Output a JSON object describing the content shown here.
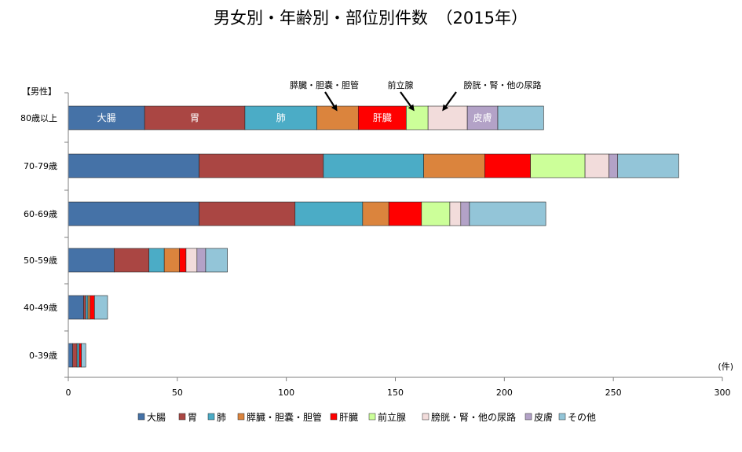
{
  "chart_data": {
    "type": "bar",
    "orientation": "horizontal",
    "stacked": true,
    "title": "男女別・年齢別・部位別件数　（2015年）",
    "group_label": "【男性】",
    "unit_label": "(件)",
    "xlim": [
      0,
      300
    ],
    "x_ticks": [
      0,
      50,
      100,
      150,
      200,
      250,
      300
    ],
    "categories": [
      "80歳以上",
      "70-79歳",
      "60-69歳",
      "50-59歳",
      "40-49歳",
      "0-39歳"
    ],
    "series": [
      {
        "name": "大腸",
        "color": "#4572A7",
        "values": [
          35,
          60,
          60,
          21,
          7,
          2
        ]
      },
      {
        "name": "胃",
        "color": "#AA4643",
        "values": [
          46,
          57,
          44,
          16,
          1,
          2
        ]
      },
      {
        "name": "肺",
        "color": "#4BACC6",
        "values": [
          33,
          46,
          31,
          7,
          1,
          1
        ]
      },
      {
        "name": "膵臓・胆嚢・胆管",
        "color": "#DB843D",
        "values": [
          19,
          28,
          12,
          7,
          1,
          0
        ]
      },
      {
        "name": "肝臓",
        "color": "#FF0000",
        "values": [
          22,
          21,
          15,
          3,
          2,
          1
        ]
      },
      {
        "name": "前立腺",
        "color": "#CCFF99",
        "values": [
          10,
          25,
          13,
          0,
          0,
          0
        ]
      },
      {
        "name": "膀胱・腎・他の尿路",
        "color": "#F2DCDB",
        "values": [
          18,
          11,
          5,
          5,
          0,
          0
        ]
      },
      {
        "name": "皮膚",
        "color": "#B3A2C7",
        "values": [
          14,
          4,
          4,
          4,
          0,
          0
        ]
      },
      {
        "name": "その他",
        "color": "#93C5D8",
        "values": [
          21,
          28,
          35,
          10,
          6,
          2
        ]
      }
    ],
    "segment_labels": {
      "大腸": "大腸",
      "胃": "胃",
      "肺": "肺",
      "肝臓": "肝臓",
      "皮膚": "皮膚"
    },
    "annotations": [
      {
        "text": "膵臓・胆嚢・胆管",
        "series": "膵臓・胆嚢・胆管"
      },
      {
        "text": "前立腺",
        "series": "前立腺"
      },
      {
        "text": "膀胱・腎・他の尿路",
        "series": "膀胱・腎・他の尿路"
      }
    ],
    "legend_position": "bottom",
    "grid": false
  }
}
